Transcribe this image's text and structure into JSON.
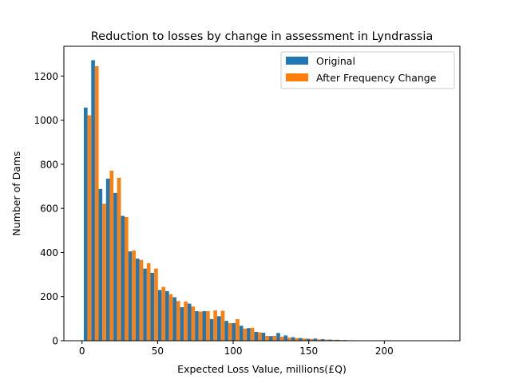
{
  "chart_data": {
    "type": "bar",
    "title": "Reduction to losses by change in assessment in Lyndrassia",
    "xlabel": "Expected Loss Value, millions(£Q)",
    "ylabel": "Number of Dams",
    "xlim": [
      -12,
      250
    ],
    "ylim": [
      0,
      1335
    ],
    "x_ticks": [
      0,
      50,
      100,
      150,
      200
    ],
    "y_ticks": [
      0,
      200,
      400,
      600,
      800,
      1000,
      1200
    ],
    "grid": false,
    "legend_position": "top-right",
    "bin_width": 4.9,
    "bin_starts": [
      1.2,
      6.1,
      11.0,
      15.9,
      20.8,
      25.7,
      30.6,
      35.5,
      40.4,
      45.3,
      50.2,
      55.1,
      60.0,
      64.9,
      69.8,
      74.7,
      79.6,
      84.5,
      89.4,
      94.3,
      99.2,
      104.1,
      109.0,
      113.9,
      118.8,
      123.7,
      128.6,
      133.5,
      138.4,
      143.3,
      148.2,
      153.1,
      158.0,
      162.9,
      167.8,
      172.7,
      177.6,
      182.5,
      187.4,
      192.3,
      197.2,
      202.1,
      207.0,
      211.9,
      216.8,
      221.7,
      226.6,
      231.5
    ],
    "series": [
      {
        "name": "Original",
        "color": "#1f77b4",
        "values": [
          1057,
          1272,
          688,
          735,
          670,
          566,
          405,
          372,
          327,
          308,
          230,
          225,
          197,
          152,
          168,
          134,
          134,
          98,
          111,
          90,
          80,
          68,
          57,
          40,
          36,
          21,
          35,
          24,
          16,
          12,
          9,
          10,
          7,
          5,
          4,
          3,
          2,
          1,
          1,
          1,
          1,
          0,
          0,
          0,
          0,
          0,
          0,
          1
        ]
      },
      {
        "name": "After Frequency Change",
        "color": "#ff7f0e",
        "values": [
          1022,
          1245,
          621,
          771,
          739,
          561,
          409,
          366,
          351,
          327,
          244,
          211,
          180,
          178,
          155,
          132,
          134,
          137,
          136,
          80,
          98,
          55,
          59,
          38,
          22,
          22,
          18,
          14,
          12,
          10,
          8,
          6,
          5,
          4,
          3,
          2,
          1,
          1,
          1,
          0,
          0,
          0,
          0,
          0,
          0,
          0,
          0,
          0
        ]
      }
    ]
  }
}
